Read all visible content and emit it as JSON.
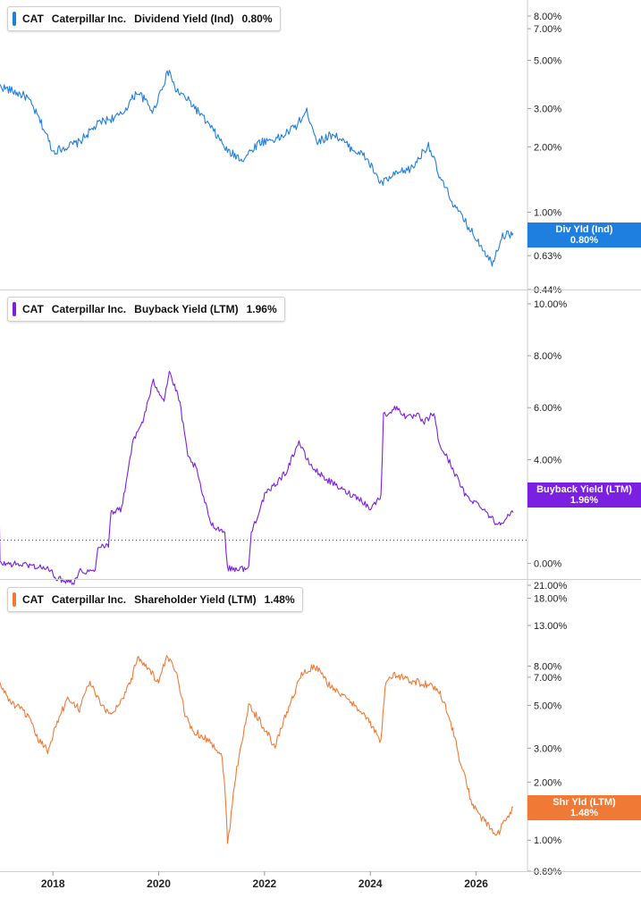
{
  "colors": {
    "dividend": "#1f7fe0",
    "buyback": "#7b1fe0",
    "shareholder": "#f07a35"
  },
  "x_axis": {
    "ticks": [
      "2018",
      "2020",
      "2022",
      "2024",
      "2026"
    ]
  },
  "panels": [
    {
      "legend": {
        "ticker": "CAT",
        "company": "Caterpillar Inc.",
        "metric": "Dividend Yield (Ind)",
        "value": "0.80%"
      },
      "tag": {
        "name": "Div Yld (Ind)",
        "value": "0.80%"
      },
      "y_ticks": [
        "8.00%",
        "7.00%",
        "5.00%",
        "3.00%",
        "2.00%",
        "1.00%",
        "0.80%",
        "0.63%",
        "0.44%"
      ]
    },
    {
      "legend": {
        "ticker": "CAT",
        "company": "Caterpillar Inc.",
        "metric": "Buyback Yield (LTM)",
        "value": "1.96%"
      },
      "tag": {
        "name": "Buyback Yield (LTM)",
        "value": "1.96%"
      },
      "y_ticks": [
        "10.00%",
        "8.00%",
        "6.00%",
        "4.00%",
        "0.00%"
      ]
    },
    {
      "legend": {
        "ticker": "CAT",
        "company": "Caterpillar Inc.",
        "metric": "Shareholder Yield (LTM)",
        "value": "1.48%"
      },
      "tag": {
        "name": "Shr Yld (LTM)",
        "value": "1.48%"
      },
      "y_ticks": [
        "21.00%",
        "18.00%",
        "13.00%",
        "8.00%",
        "7.00%",
        "5.00%",
        "3.00%",
        "2.00%",
        "1.00%",
        "0.69%"
      ]
    }
  ],
  "chart_data": [
    {
      "type": "line",
      "title": "CAT Caterpillar Inc. Dividend Yield (Ind) 0.80%",
      "scale": "log",
      "ylim": [
        0.44,
        8.0
      ],
      "x": [
        2017.0,
        2017.5,
        2017.8,
        2018.0,
        2018.5,
        2018.9,
        2019.3,
        2019.6,
        2019.9,
        2020.2,
        2020.3,
        2020.6,
        2020.9,
        2021.3,
        2021.6,
        2021.9,
        2022.3,
        2022.6,
        2022.8,
        2023.0,
        2023.3,
        2023.6,
        2023.9,
        2024.2,
        2024.5,
        2024.8,
        2025.1,
        2025.3,
        2025.6,
        2025.9,
        2026.1,
        2026.3,
        2026.5,
        2026.7
      ],
      "series": [
        {
          "values": [
            3.8,
            3.4,
            2.5,
            1.9,
            2.1,
            2.6,
            2.8,
            3.6,
            2.9,
            4.5,
            3.7,
            3.2,
            2.6,
            1.9,
            1.75,
            2.1,
            2.2,
            2.5,
            2.9,
            2.1,
            2.3,
            2.0,
            1.8,
            1.35,
            1.5,
            1.6,
            2.05,
            1.45,
            1.05,
            0.82,
            0.7,
            0.58,
            0.78,
            0.8
          ]
        }
      ]
    },
    {
      "type": "line",
      "title": "CAT Caterpillar Inc. Buyback Yield (LTM) 1.96%",
      "ylim": [
        -1.0,
        10.0
      ],
      "x": [
        2016.98,
        2017.0,
        2017.5,
        2017.9,
        2018.1,
        2018.4,
        2018.5,
        2018.8,
        2018.85,
        2019.05,
        2019.1,
        2019.3,
        2019.5,
        2019.7,
        2019.9,
        2020.1,
        2020.2,
        2020.4,
        2020.55,
        2020.7,
        2020.85,
        2021.0,
        2021.25,
        2021.3,
        2021.7,
        2021.75,
        2022.0,
        2022.4,
        2022.65,
        2022.8,
        2022.95,
        2023.2,
        2023.5,
        2023.8,
        2024.0,
        2024.2,
        2024.25,
        2024.5,
        2024.7,
        2024.9,
        2025.0,
        2025.2,
        2025.3,
        2025.5,
        2025.8,
        2026.1,
        2026.4,
        2026.7
      ],
      "series": [
        {
          "values": [
            3.1,
            0.0,
            -0.05,
            -0.2,
            -0.6,
            -0.7,
            -0.3,
            -0.3,
            0.7,
            0.7,
            2.0,
            2.1,
            4.6,
            5.5,
            7.0,
            6.3,
            7.4,
            6.2,
            4.1,
            3.7,
            2.5,
            1.5,
            1.2,
            -0.2,
            -0.2,
            1.2,
            2.6,
            3.5,
            4.7,
            4.0,
            3.6,
            3.2,
            2.8,
            2.5,
            2.1,
            2.6,
            5.7,
            6.0,
            5.6,
            5.7,
            5.4,
            5.8,
            4.6,
            3.9,
            2.6,
            2.2,
            1.5,
            1.96
          ]
        }
      ]
    },
    {
      "type": "line",
      "title": "CAT Caterpillar Inc. Shareholder Yield (LTM) 1.48%",
      "scale": "log",
      "ylim": [
        0.69,
        21.0
      ],
      "x": [
        2016.98,
        2017.2,
        2017.5,
        2017.7,
        2017.9,
        2018.1,
        2018.3,
        2018.5,
        2018.7,
        2018.9,
        2019.1,
        2019.3,
        2019.5,
        2019.6,
        2019.8,
        2020.0,
        2020.15,
        2020.3,
        2020.5,
        2020.6,
        2020.8,
        2021.0,
        2021.2,
        2021.3,
        2021.35,
        2021.6,
        2021.7,
        2021.9,
        2022.2,
        2022.5,
        2022.7,
        2022.95,
        2023.2,
        2023.5,
        2023.8,
        2024.0,
        2024.2,
        2024.3,
        2024.5,
        2024.7,
        2025.0,
        2025.3,
        2025.5,
        2025.7,
        2025.9,
        2026.1,
        2026.4,
        2026.7
      ],
      "series": [
        {
          "values": [
            6.5,
            5.2,
            4.5,
            3.4,
            2.9,
            4.2,
            5.5,
            4.8,
            6.6,
            5.0,
            4.5,
            5.3,
            7.0,
            9.0,
            7.8,
            6.5,
            8.8,
            7.8,
            4.5,
            3.8,
            3.5,
            3.2,
            2.7,
            0.95,
            1.2,
            3.5,
            5.0,
            4.2,
            3.0,
            5.2,
            7.2,
            8.0,
            6.5,
            5.5,
            4.8,
            4.0,
            3.2,
            6.8,
            7.2,
            6.8,
            6.5,
            6.0,
            4.2,
            2.5,
            1.6,
            1.3,
            1.05,
            1.48
          ]
        }
      ]
    }
  ]
}
